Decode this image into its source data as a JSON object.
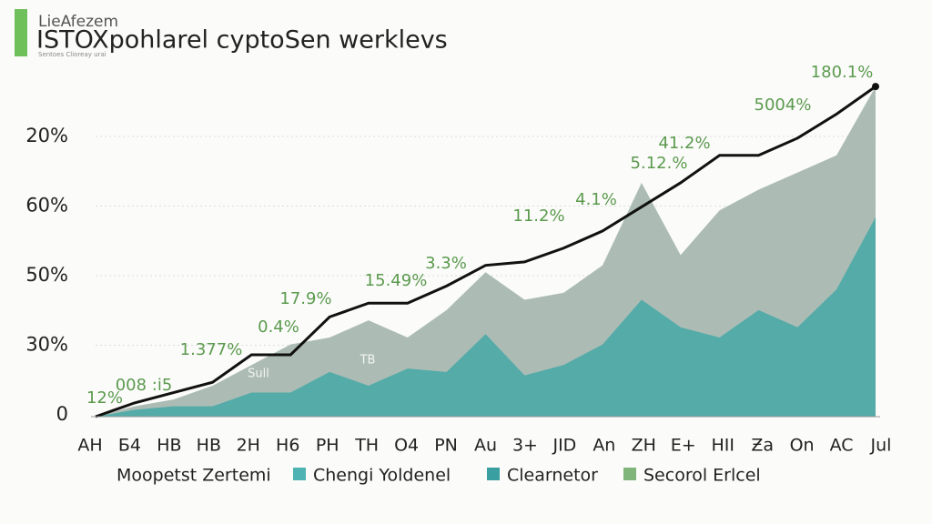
{
  "chart_data": {
    "type": "line-area",
    "kicker": "LieAfezem",
    "title": "ISTOXpohlarel cyptoSen werklevs",
    "subtitle": "Sentoes Clioreay urai",
    "categories": [
      "AH",
      "Б4",
      "HB",
      "HB",
      "2H",
      "H6",
      "PH",
      "TH",
      "O4",
      "PN",
      "Au",
      "3+",
      "JID",
      "An",
      "ZH",
      "E+",
      "HII",
      "Ƶa",
      "On",
      "AC",
      "Jul"
    ],
    "y_labels": [
      "0",
      "30%",
      "50%",
      "60%",
      "20%"
    ],
    "ylim": [
      0,
      100
    ],
    "grid": true,
    "series": [
      {
        "kind": "area",
        "color": "#a3b5ad",
        "values": [
          0,
          3,
          5,
          9,
          15,
          21,
          23,
          28,
          23,
          31,
          42,
          34,
          36,
          44,
          68,
          47,
          60,
          66,
          71,
          76,
          96
        ]
      },
      {
        "kind": "area",
        "color": "#4aa8a6",
        "values": [
          0,
          2,
          3,
          3,
          7,
          7,
          13,
          9,
          14,
          13,
          24,
          12,
          15,
          21,
          34,
          26,
          23,
          31,
          26,
          37,
          58
        ]
      },
      {
        "kind": "line",
        "color": "#111111",
        "values": [
          0,
          4,
          7,
          10,
          18,
          18,
          29,
          33,
          33,
          38,
          44,
          45,
          49,
          54,
          61,
          68,
          76,
          76,
          81,
          88,
          96
        ]
      }
    ],
    "annotations": [
      "12%",
      "008 :i5",
      "1.377%",
      "0.4%",
      "17.9%",
      "15.49%",
      "3.3%",
      "11.2%",
      "4.1%",
      "5.12.%",
      "41.2%",
      "5004%",
      "180.1%",
      "Sull",
      "TB"
    ],
    "legend": [
      {
        "name": "Moopetst Zertemi"
      },
      {
        "name": "Chengi Yoldenel",
        "color": "#4fb3b3"
      },
      {
        "name": "Clearnetor",
        "color": "#3a9fa0"
      },
      {
        "name": "Secorol Erlcel",
        "color": "#7fb57a"
      }
    ]
  }
}
